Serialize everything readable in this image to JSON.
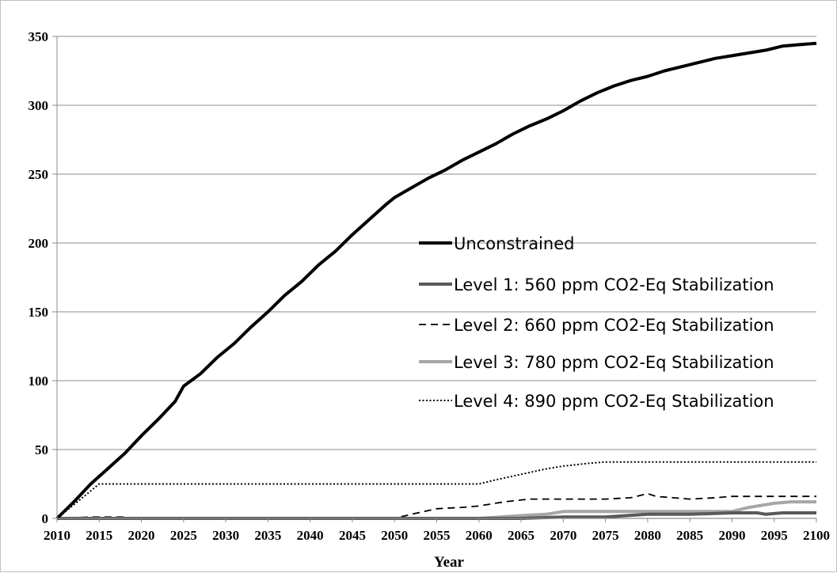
{
  "chart_data": {
    "type": "line",
    "title": "",
    "xlabel": "Year",
    "ylabel": "",
    "xlim": [
      2010,
      2100
    ],
    "ylim": [
      0,
      350
    ],
    "x_ticks": [
      "2010",
      "2015",
      "2020",
      "2025",
      "2030",
      "2035",
      "2040",
      "2045",
      "2050",
      "2055",
      "2060",
      "2065",
      "2070",
      "2075",
      "2080",
      "2085",
      "2090",
      "2095",
      "2100"
    ],
    "y_ticks": [
      "0",
      "50",
      "100",
      "150",
      "200",
      "250",
      "300",
      "350"
    ],
    "grid": "horizontal",
    "legend_position": "center-right",
    "series": [
      {
        "name": "Unconstrained",
        "color": "#000000",
        "style": "solid-thick",
        "points": [
          [
            2010,
            0
          ],
          [
            2012,
            12
          ],
          [
            2014,
            25
          ],
          [
            2016,
            36
          ],
          [
            2018,
            47
          ],
          [
            2020,
            60
          ],
          [
            2022,
            72
          ],
          [
            2024,
            85
          ],
          [
            2025,
            96
          ],
          [
            2027,
            105
          ],
          [
            2029,
            117
          ],
          [
            2031,
            127
          ],
          [
            2033,
            139
          ],
          [
            2035,
            150
          ],
          [
            2037,
            162
          ],
          [
            2039,
            172
          ],
          [
            2041,
            184
          ],
          [
            2043,
            194
          ],
          [
            2045,
            206
          ],
          [
            2047,
            217
          ],
          [
            2049,
            228
          ],
          [
            2050,
            233
          ],
          [
            2052,
            240
          ],
          [
            2054,
            247
          ],
          [
            2056,
            253
          ],
          [
            2058,
            260
          ],
          [
            2060,
            266
          ],
          [
            2062,
            272
          ],
          [
            2064,
            279
          ],
          [
            2066,
            285
          ],
          [
            2068,
            290
          ],
          [
            2070,
            296
          ],
          [
            2072,
            303
          ],
          [
            2074,
            309
          ],
          [
            2076,
            314
          ],
          [
            2078,
            318
          ],
          [
            2080,
            321
          ],
          [
            2082,
            325
          ],
          [
            2084,
            328
          ],
          [
            2086,
            331
          ],
          [
            2088,
            334
          ],
          [
            2090,
            336
          ],
          [
            2092,
            338
          ],
          [
            2094,
            340
          ],
          [
            2096,
            343
          ],
          [
            2098,
            344
          ],
          [
            2100,
            345
          ]
        ]
      },
      {
        "name": "Level 1: 560 ppm CO2-Eq Stabilization",
        "color": "#595959",
        "style": "solid-thick",
        "points": [
          [
            2010,
            0
          ],
          [
            2065,
            0
          ],
          [
            2070,
            1
          ],
          [
            2075,
            1
          ],
          [
            2080,
            3
          ],
          [
            2085,
            3
          ],
          [
            2090,
            4
          ],
          [
            2093,
            4
          ],
          [
            2094,
            3
          ],
          [
            2096,
            4
          ],
          [
            2100,
            4
          ]
        ]
      },
      {
        "name": "Level 2: 660 ppm CO2-Eq Stabilization",
        "color": "#000000",
        "style": "dashed",
        "points": [
          [
            2010,
            0
          ],
          [
            2014,
            1
          ],
          [
            2018,
            1
          ],
          [
            2019,
            0
          ],
          [
            2050,
            0
          ],
          [
            2052,
            3
          ],
          [
            2055,
            7
          ],
          [
            2058,
            8
          ],
          [
            2060,
            9
          ],
          [
            2063,
            12
          ],
          [
            2066,
            14
          ],
          [
            2070,
            14
          ],
          [
            2075,
            14
          ],
          [
            2078,
            15
          ],
          [
            2080,
            18
          ],
          [
            2081,
            16
          ],
          [
            2083,
            15
          ],
          [
            2085,
            14
          ],
          [
            2088,
            15
          ],
          [
            2090,
            16
          ],
          [
            2095,
            16
          ],
          [
            2100,
            16
          ]
        ]
      },
      {
        "name": "Level 3: 780 ppm CO2-Eq Stabilization",
        "color": "#a6a6a6",
        "style": "solid-thick",
        "points": [
          [
            2010,
            0
          ],
          [
            2060,
            0
          ],
          [
            2065,
            2
          ],
          [
            2068,
            3
          ],
          [
            2070,
            5
          ],
          [
            2075,
            5
          ],
          [
            2080,
            5
          ],
          [
            2085,
            5
          ],
          [
            2090,
            5
          ],
          [
            2092,
            8
          ],
          [
            2095,
            11
          ],
          [
            2097,
            12
          ],
          [
            2100,
            12
          ]
        ]
      },
      {
        "name": "Level 4: 890 ppm CO2-Eq Stabilization",
        "color": "#000000",
        "style": "dotted",
        "points": [
          [
            2010,
            0
          ],
          [
            2013,
            15
          ],
          [
            2015,
            25
          ],
          [
            2020,
            25
          ],
          [
            2030,
            25
          ],
          [
            2040,
            25
          ],
          [
            2050,
            25
          ],
          [
            2060,
            25
          ],
          [
            2062,
            28
          ],
          [
            2065,
            32
          ],
          [
            2068,
            36
          ],
          [
            2070,
            38
          ],
          [
            2073,
            40
          ],
          [
            2075,
            41
          ],
          [
            2080,
            41
          ],
          [
            2090,
            41
          ],
          [
            2100,
            41
          ]
        ]
      }
    ]
  }
}
